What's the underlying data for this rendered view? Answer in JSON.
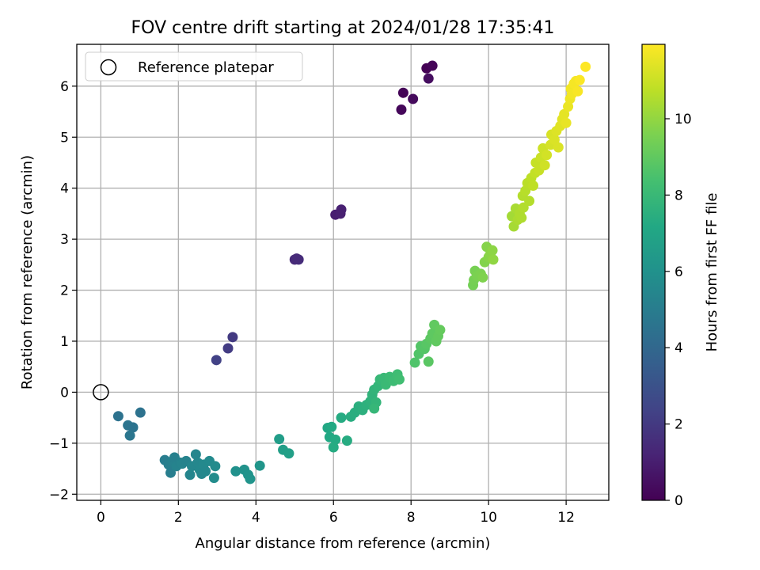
{
  "chart_data": {
    "type": "scatter",
    "title": "FOV centre drift starting at 2024/01/28 17:35:41",
    "xlabel": "Angular distance from reference (arcmin)",
    "ylabel": "Rotation from reference (arcmin)",
    "xlim": [
      -0.62,
      13.1
    ],
    "ylim": [
      -2.12,
      6.82
    ],
    "xticks": [
      0,
      2,
      4,
      6,
      8,
      10,
      12
    ],
    "yticks": [
      -2,
      -1,
      0,
      1,
      2,
      3,
      4,
      5,
      6
    ],
    "grid": true,
    "legend": {
      "position": "top-left",
      "entries": [
        "Reference platepar"
      ]
    },
    "reference_point": {
      "x": 0,
      "y": 0
    },
    "colormap": "viridis",
    "colorbar": {
      "label": "Hours from first FF file",
      "range": [
        0,
        11.95
      ],
      "ticks": [
        0,
        2,
        4,
        6,
        8,
        10
      ]
    },
    "points": [
      {
        "x": 7.8,
        "y": 5.87,
        "c": 0.1
      },
      {
        "x": 7.75,
        "y": 5.54,
        "c": 0.2
      },
      {
        "x": 8.05,
        "y": 5.75,
        "c": 0.3
      },
      {
        "x": 8.4,
        "y": 6.35,
        "c": 0.05
      },
      {
        "x": 8.55,
        "y": 6.4,
        "c": 0.15
      },
      {
        "x": 8.45,
        "y": 6.15,
        "c": 0.4
      },
      {
        "x": 6.05,
        "y": 3.48,
        "c": 1.0
      },
      {
        "x": 6.2,
        "y": 3.58,
        "c": 1.1
      },
      {
        "x": 6.18,
        "y": 3.5,
        "c": 1.05
      },
      {
        "x": 5.0,
        "y": 2.6,
        "c": 1.4
      },
      {
        "x": 5.1,
        "y": 2.6,
        "c": 1.5
      },
      {
        "x": 5.05,
        "y": 2.62,
        "c": 1.45
      },
      {
        "x": 3.4,
        "y": 1.08,
        "c": 2.0
      },
      {
        "x": 3.28,
        "y": 0.86,
        "c": 2.1
      },
      {
        "x": 2.98,
        "y": 0.63,
        "c": 2.3
      },
      {
        "x": 0.45,
        "y": -0.47,
        "c": 4.5
      },
      {
        "x": 0.7,
        "y": -0.65,
        "c": 4.6
      },
      {
        "x": 0.83,
        "y": -0.69,
        "c": 4.55
      },
      {
        "x": 0.75,
        "y": -0.85,
        "c": 4.7
      },
      {
        "x": 1.02,
        "y": -0.4,
        "c": 4.5
      },
      {
        "x": 1.65,
        "y": -1.33,
        "c": 5.0
      },
      {
        "x": 1.75,
        "y": -1.42,
        "c": 5.1
      },
      {
        "x": 1.8,
        "y": -1.58,
        "c": 5.05
      },
      {
        "x": 1.85,
        "y": -1.35,
        "c": 5.2
      },
      {
        "x": 1.9,
        "y": -1.28,
        "c": 5.15
      },
      {
        "x": 1.95,
        "y": -1.45,
        "c": 5.3
      },
      {
        "x": 2.05,
        "y": -1.38,
        "c": 5.25
      },
      {
        "x": 2.1,
        "y": -1.4,
        "c": 5.35
      },
      {
        "x": 2.2,
        "y": -1.35,
        "c": 5.3
      },
      {
        "x": 2.3,
        "y": -1.62,
        "c": 5.4
      },
      {
        "x": 2.35,
        "y": -1.45,
        "c": 5.5
      },
      {
        "x": 2.45,
        "y": -1.22,
        "c": 5.45
      },
      {
        "x": 2.5,
        "y": -1.38,
        "c": 5.5
      },
      {
        "x": 2.55,
        "y": -1.52,
        "c": 5.55
      },
      {
        "x": 2.6,
        "y": -1.6,
        "c": 5.5
      },
      {
        "x": 2.65,
        "y": -1.42,
        "c": 5.6
      },
      {
        "x": 2.7,
        "y": -1.55,
        "c": 5.55
      },
      {
        "x": 2.8,
        "y": -1.35,
        "c": 5.65
      },
      {
        "x": 2.95,
        "y": -1.45,
        "c": 5.7
      },
      {
        "x": 2.92,
        "y": -1.68,
        "c": 5.75
      },
      {
        "x": 3.48,
        "y": -1.55,
        "c": 6.0
      },
      {
        "x": 3.7,
        "y": -1.52,
        "c": 6.05
      },
      {
        "x": 3.8,
        "y": -1.62,
        "c": 6.1
      },
      {
        "x": 3.85,
        "y": -1.7,
        "c": 6.15
      },
      {
        "x": 4.1,
        "y": -1.44,
        "c": 6.2
      },
      {
        "x": 4.6,
        "y": -0.92,
        "c": 6.6
      },
      {
        "x": 4.7,
        "y": -1.13,
        "c": 6.65
      },
      {
        "x": 4.85,
        "y": -1.2,
        "c": 6.7
      },
      {
        "x": 5.85,
        "y": -0.7,
        "c": 7.1
      },
      {
        "x": 5.9,
        "y": -0.88,
        "c": 7.15
      },
      {
        "x": 5.95,
        "y": -0.68,
        "c": 7.2
      },
      {
        "x": 6.05,
        "y": -0.93,
        "c": 7.25
      },
      {
        "x": 6.0,
        "y": -1.08,
        "c": 7.3
      },
      {
        "x": 6.2,
        "y": -0.5,
        "c": 7.3
      },
      {
        "x": 6.35,
        "y": -0.95,
        "c": 7.35
      },
      {
        "x": 6.45,
        "y": -0.48,
        "c": 7.4
      },
      {
        "x": 6.55,
        "y": -0.4,
        "c": 7.45
      },
      {
        "x": 6.65,
        "y": -0.28,
        "c": 7.5
      },
      {
        "x": 6.75,
        "y": -0.35,
        "c": 7.55
      },
      {
        "x": 6.85,
        "y": -0.25,
        "c": 7.6
      },
      {
        "x": 6.95,
        "y": -0.18,
        "c": 7.65
      },
      {
        "x": 7.0,
        "y": -0.05,
        "c": 7.7
      },
      {
        "x": 7.05,
        "y": 0.05,
        "c": 7.75
      },
      {
        "x": 7.1,
        "y": -0.2,
        "c": 7.8
      },
      {
        "x": 7.15,
        "y": 0.12,
        "c": 7.85
      },
      {
        "x": 7.05,
        "y": -0.32,
        "c": 7.9
      },
      {
        "x": 7.2,
        "y": 0.25,
        "c": 7.95
      },
      {
        "x": 7.3,
        "y": 0.28,
        "c": 8.0
      },
      {
        "x": 7.35,
        "y": 0.15,
        "c": 8.05
      },
      {
        "x": 7.45,
        "y": 0.3,
        "c": 8.1
      },
      {
        "x": 7.55,
        "y": 0.22,
        "c": 8.15
      },
      {
        "x": 7.65,
        "y": 0.35,
        "c": 8.2
      },
      {
        "x": 7.7,
        "y": 0.25,
        "c": 8.25
      },
      {
        "x": 8.1,
        "y": 0.58,
        "c": 8.6
      },
      {
        "x": 8.2,
        "y": 0.75,
        "c": 8.65
      },
      {
        "x": 8.25,
        "y": 0.9,
        "c": 8.7
      },
      {
        "x": 8.35,
        "y": 0.85,
        "c": 8.75
      },
      {
        "x": 8.4,
        "y": 0.95,
        "c": 8.8
      },
      {
        "x": 8.45,
        "y": 0.6,
        "c": 8.85
      },
      {
        "x": 8.5,
        "y": 1.05,
        "c": 8.9
      },
      {
        "x": 8.55,
        "y": 1.15,
        "c": 8.95
      },
      {
        "x": 8.6,
        "y": 1.32,
        "c": 9.0
      },
      {
        "x": 8.65,
        "y": 1.0,
        "c": 9.0
      },
      {
        "x": 8.7,
        "y": 1.1,
        "c": 9.05
      },
      {
        "x": 8.75,
        "y": 1.22,
        "c": 9.1
      },
      {
        "x": 9.6,
        "y": 2.1,
        "c": 9.4
      },
      {
        "x": 9.62,
        "y": 2.2,
        "c": 9.45
      },
      {
        "x": 9.65,
        "y": 2.38,
        "c": 9.5
      },
      {
        "x": 9.7,
        "y": 2.28,
        "c": 9.55
      },
      {
        "x": 9.8,
        "y": 2.32,
        "c": 9.6
      },
      {
        "x": 9.85,
        "y": 2.25,
        "c": 9.65
      },
      {
        "x": 9.9,
        "y": 2.55,
        "c": 9.7
      },
      {
        "x": 9.95,
        "y": 2.85,
        "c": 9.75
      },
      {
        "x": 10.0,
        "y": 2.65,
        "c": 9.8
      },
      {
        "x": 10.05,
        "y": 2.72,
        "c": 9.85
      },
      {
        "x": 10.1,
        "y": 2.78,
        "c": 9.9
      },
      {
        "x": 10.12,
        "y": 2.6,
        "c": 9.95
      },
      {
        "x": 10.6,
        "y": 3.45,
        "c": 10.3
      },
      {
        "x": 10.65,
        "y": 3.25,
        "c": 10.35
      },
      {
        "x": 10.7,
        "y": 3.6,
        "c": 10.4
      },
      {
        "x": 10.75,
        "y": 3.38,
        "c": 10.45
      },
      {
        "x": 10.8,
        "y": 3.5,
        "c": 10.5
      },
      {
        "x": 10.85,
        "y": 3.42,
        "c": 10.5
      },
      {
        "x": 10.9,
        "y": 3.62,
        "c": 10.55
      },
      {
        "x": 10.88,
        "y": 3.85,
        "c": 10.6
      },
      {
        "x": 10.95,
        "y": 3.95,
        "c": 10.65
      },
      {
        "x": 11.0,
        "y": 4.1,
        "c": 10.7
      },
      {
        "x": 11.05,
        "y": 3.75,
        "c": 10.6
      },
      {
        "x": 11.1,
        "y": 4.2,
        "c": 10.75
      },
      {
        "x": 11.15,
        "y": 4.05,
        "c": 10.8
      },
      {
        "x": 11.2,
        "y": 4.3,
        "c": 10.85
      },
      {
        "x": 11.22,
        "y": 4.5,
        "c": 10.9
      },
      {
        "x": 11.3,
        "y": 4.35,
        "c": 10.95
      },
      {
        "x": 11.35,
        "y": 4.6,
        "c": 11.0
      },
      {
        "x": 11.4,
        "y": 4.78,
        "c": 11.05
      },
      {
        "x": 11.45,
        "y": 4.45,
        "c": 11.1
      },
      {
        "x": 11.5,
        "y": 4.65,
        "c": 11.15
      },
      {
        "x": 11.6,
        "y": 4.85,
        "c": 11.2
      },
      {
        "x": 11.62,
        "y": 5.05,
        "c": 11.25
      },
      {
        "x": 11.7,
        "y": 4.95,
        "c": 11.3
      },
      {
        "x": 11.75,
        "y": 5.12,
        "c": 11.35
      },
      {
        "x": 11.8,
        "y": 4.8,
        "c": 11.3
      },
      {
        "x": 11.85,
        "y": 5.22,
        "c": 11.4
      },
      {
        "x": 11.9,
        "y": 5.35,
        "c": 11.45
      },
      {
        "x": 11.95,
        "y": 5.45,
        "c": 11.5
      },
      {
        "x": 12.0,
        "y": 5.28,
        "c": 11.55
      },
      {
        "x": 12.05,
        "y": 5.6,
        "c": 11.6
      },
      {
        "x": 12.1,
        "y": 5.75,
        "c": 11.65
      },
      {
        "x": 12.12,
        "y": 5.95,
        "c": 11.7
      },
      {
        "x": 12.15,
        "y": 5.85,
        "c": 11.75
      },
      {
        "x": 12.2,
        "y": 6.05,
        "c": 11.8
      },
      {
        "x": 12.25,
        "y": 6.1,
        "c": 11.8
      },
      {
        "x": 12.3,
        "y": 5.9,
        "c": 11.85
      },
      {
        "x": 12.35,
        "y": 6.12,
        "c": 11.9
      },
      {
        "x": 12.5,
        "y": 6.38,
        "c": 11.95
      }
    ]
  }
}
